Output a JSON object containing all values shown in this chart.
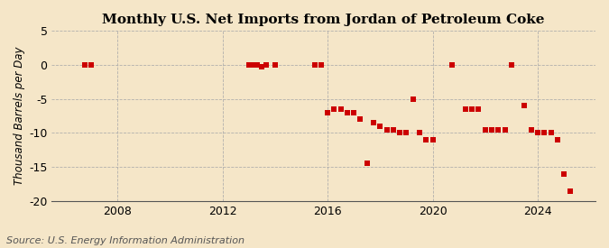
{
  "title": "Monthly U.S. Net Imports from Jordan of Petroleum Coke",
  "ylabel": "Thousand Barrels per Day",
  "source": "Source: U.S. Energy Information Administration",
  "ylim": [
    -20,
    5
  ],
  "yticks": [
    -20,
    -15,
    -10,
    -5,
    0,
    5
  ],
  "xlim_start": 2005.5,
  "xlim_end": 2026.2,
  "xticks": [
    2008,
    2012,
    2016,
    2020,
    2024
  ],
  "background_color": "#f5e6c8",
  "marker_color": "#cc0000",
  "marker_size": 5,
  "data_points": [
    [
      2006.75,
      0
    ],
    [
      2007.0,
      0
    ],
    [
      2013.0,
      0
    ],
    [
      2013.17,
      0
    ],
    [
      2013.33,
      0
    ],
    [
      2013.5,
      -0.3
    ],
    [
      2013.67,
      0
    ],
    [
      2014.0,
      0
    ],
    [
      2015.5,
      0
    ],
    [
      2015.75,
      0
    ],
    [
      2016.0,
      -7
    ],
    [
      2016.25,
      -6.5
    ],
    [
      2016.5,
      -6.5
    ],
    [
      2016.75,
      -7
    ],
    [
      2017.0,
      -7
    ],
    [
      2017.25,
      -8
    ],
    [
      2017.5,
      -14.5
    ],
    [
      2017.75,
      -8.5
    ],
    [
      2018.0,
      -9
    ],
    [
      2018.25,
      -9.5
    ],
    [
      2018.5,
      -9.5
    ],
    [
      2018.75,
      -10
    ],
    [
      2019.0,
      -10
    ],
    [
      2019.25,
      -5
    ],
    [
      2019.5,
      -10
    ],
    [
      2019.75,
      -11
    ],
    [
      2020.0,
      -11
    ],
    [
      2020.75,
      0
    ],
    [
      2021.25,
      -6.5
    ],
    [
      2021.5,
      -6.5
    ],
    [
      2021.75,
      -6.5
    ],
    [
      2022.0,
      -9.5
    ],
    [
      2022.25,
      -9.5
    ],
    [
      2022.5,
      -9.5
    ],
    [
      2022.75,
      -9.5
    ],
    [
      2023.0,
      0
    ],
    [
      2023.5,
      -6
    ],
    [
      2023.75,
      -9.5
    ],
    [
      2024.0,
      -10
    ],
    [
      2024.25,
      -10
    ],
    [
      2024.5,
      -10
    ],
    [
      2024.75,
      -11
    ],
    [
      2025.0,
      -16
    ],
    [
      2025.25,
      -18.5
    ]
  ],
  "vgrid_years": [
    2008,
    2012,
    2016,
    2020,
    2024
  ],
  "title_fontsize": 11,
  "label_fontsize": 8.5,
  "tick_fontsize": 9,
  "source_fontsize": 8
}
